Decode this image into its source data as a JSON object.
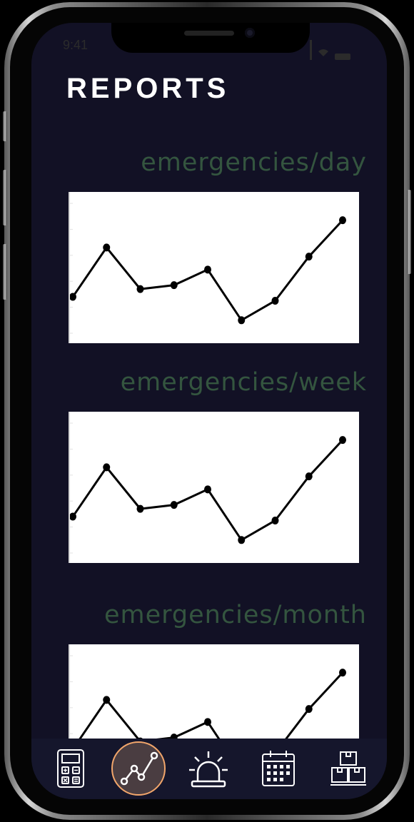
{
  "status_bar": {
    "time": "9:41"
  },
  "header": {
    "title": "REPORTS"
  },
  "sections": [
    {
      "label": "emergencies/day",
      "chart_data": {
        "type": "line",
        "series": [
          {
            "values": [
              28,
              66,
              34,
              37,
              49,
              10,
              25,
              59,
              87
            ]
          }
        ]
      }
    },
    {
      "label": "emergencies/week",
      "chart_data": {
        "type": "line",
        "series": [
          {
            "values": [
              28,
              66,
              34,
              37,
              49,
              10,
              25,
              59,
              87
            ]
          }
        ]
      }
    },
    {
      "label": "emergencies/month",
      "chart_data": {
        "type": "line",
        "series": [
          {
            "values": [
              28,
              66,
              34,
              37,
              49,
              10,
              25,
              59,
              87
            ]
          }
        ]
      }
    }
  ],
  "bottom_nav": {
    "items": [
      {
        "icon": "calculator-icon"
      },
      {
        "icon": "line-chart-icon",
        "active": true
      },
      {
        "icon": "siren-icon"
      },
      {
        "icon": "calendar-icon"
      },
      {
        "icon": "boxes-icon"
      }
    ]
  },
  "colors": {
    "screen_background": "#121125",
    "section_label": "#34553f",
    "active_nav_ring": "#f2a66b",
    "nav_icon": "#ffffff"
  }
}
